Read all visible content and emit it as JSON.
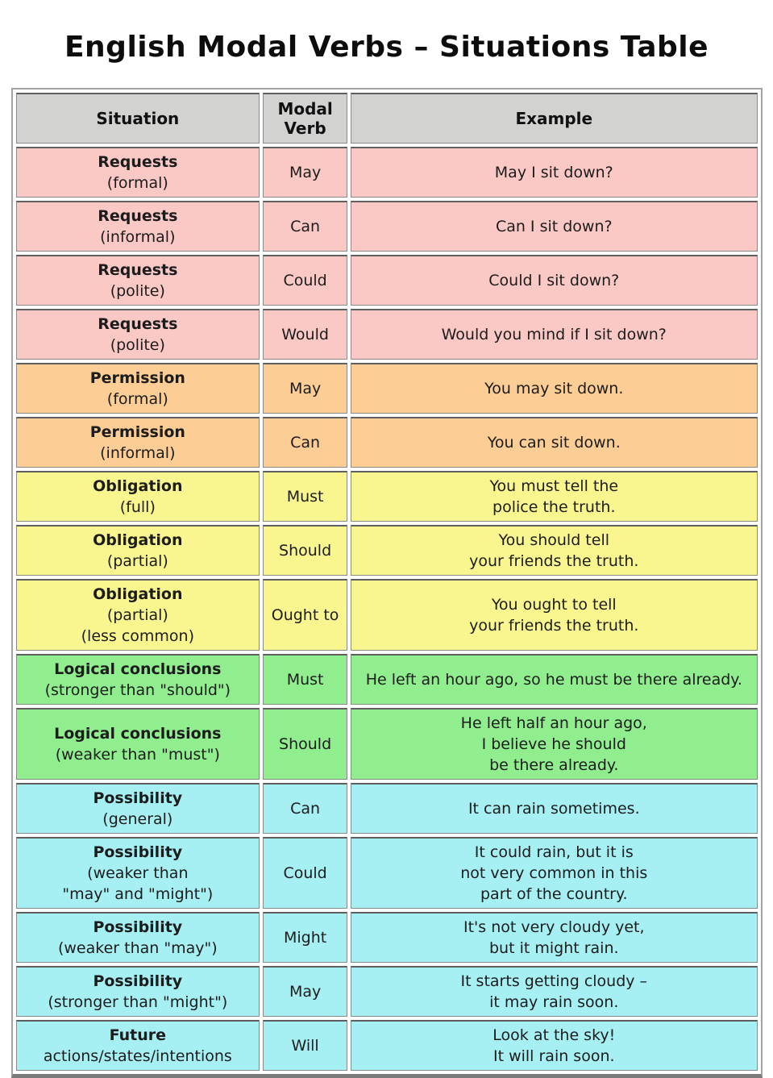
{
  "title": "English Modal Verbs – Situations Table",
  "colors": {
    "header": "#d2d2d0",
    "pink": "#fac8c5",
    "orange": "#fccd94",
    "yellow": "#f9f68f",
    "green": "#90ee8e",
    "cyan": "#a6eff2"
  },
  "table": {
    "headers": [
      "Situation",
      "Modal Verb",
      "Example"
    ],
    "rows": [
      {
        "label": "Requests",
        "sublabel": "(formal)",
        "verb": "May",
        "example": "May I sit down?",
        "color": "pink"
      },
      {
        "label": "Requests",
        "sublabel": "(informal)",
        "verb": "Can",
        "example": "Can I sit down?",
        "color": "pink"
      },
      {
        "label": "Requests",
        "sublabel": "(polite)",
        "verb": "Could",
        "example": "Could I sit down?",
        "color": "pink"
      },
      {
        "label": "Requests",
        "sublabel": "(polite)",
        "verb": "Would",
        "example": "Would you mind if I sit down?",
        "color": "pink"
      },
      {
        "label": "Permission",
        "sublabel": "(formal)",
        "verb": "May",
        "example": "You may sit down.",
        "color": "orange"
      },
      {
        "label": "Permission",
        "sublabel": "(informal)",
        "verb": "Can",
        "example": "You can sit down.",
        "color": "orange"
      },
      {
        "label": "Obligation",
        "sublabel": "(full)",
        "verb": "Must",
        "example": "You must tell the\npolice the truth.",
        "color": "yellow"
      },
      {
        "label": "Obligation",
        "sublabel": "(partial)",
        "verb": "Should",
        "example": "You should tell\nyour friends the truth.",
        "color": "yellow"
      },
      {
        "label": "Obligation",
        "sublabel": "(partial)\n(less common)",
        "verb": "Ought to",
        "example": "You ought to tell\nyour friends the truth.",
        "color": "yellow"
      },
      {
        "label": "Logical conclusions",
        "sublabel": "(stronger than \"should\")",
        "verb": "Must",
        "example": "He left an hour ago, so he must be there already.",
        "color": "green"
      },
      {
        "label": "Logical conclusions",
        "sublabel": "(weaker than \"must\")",
        "verb": "Should",
        "example": "He left half an hour ago,\nI believe he should\nbe there already.",
        "color": "green"
      },
      {
        "label": "Possibility",
        "sublabel": "(general)",
        "verb": "Can",
        "example": "It can rain sometimes.",
        "color": "cyan"
      },
      {
        "label": "Possibility",
        "sublabel": "(weaker than\n\"may\" and \"might\")",
        "verb": "Could",
        "example": "It could rain, but it is\nnot very common in this\npart of the country.",
        "color": "cyan"
      },
      {
        "label": "Possibility",
        "sublabel": "(weaker than \"may\")",
        "verb": "Might",
        "example": "It's not very cloudy yet,\nbut it might rain.",
        "color": "cyan"
      },
      {
        "label": "Possibility",
        "sublabel": "(stronger than \"might\")",
        "verb": "May",
        "example": "It starts getting cloudy –\nit may rain soon.",
        "color": "cyan"
      },
      {
        "label": "Future",
        "sublabel": "actions/states/intentions",
        "verb": "Will",
        "example": "Look at the sky!\nIt will rain soon.",
        "color": "cyan"
      }
    ]
  }
}
